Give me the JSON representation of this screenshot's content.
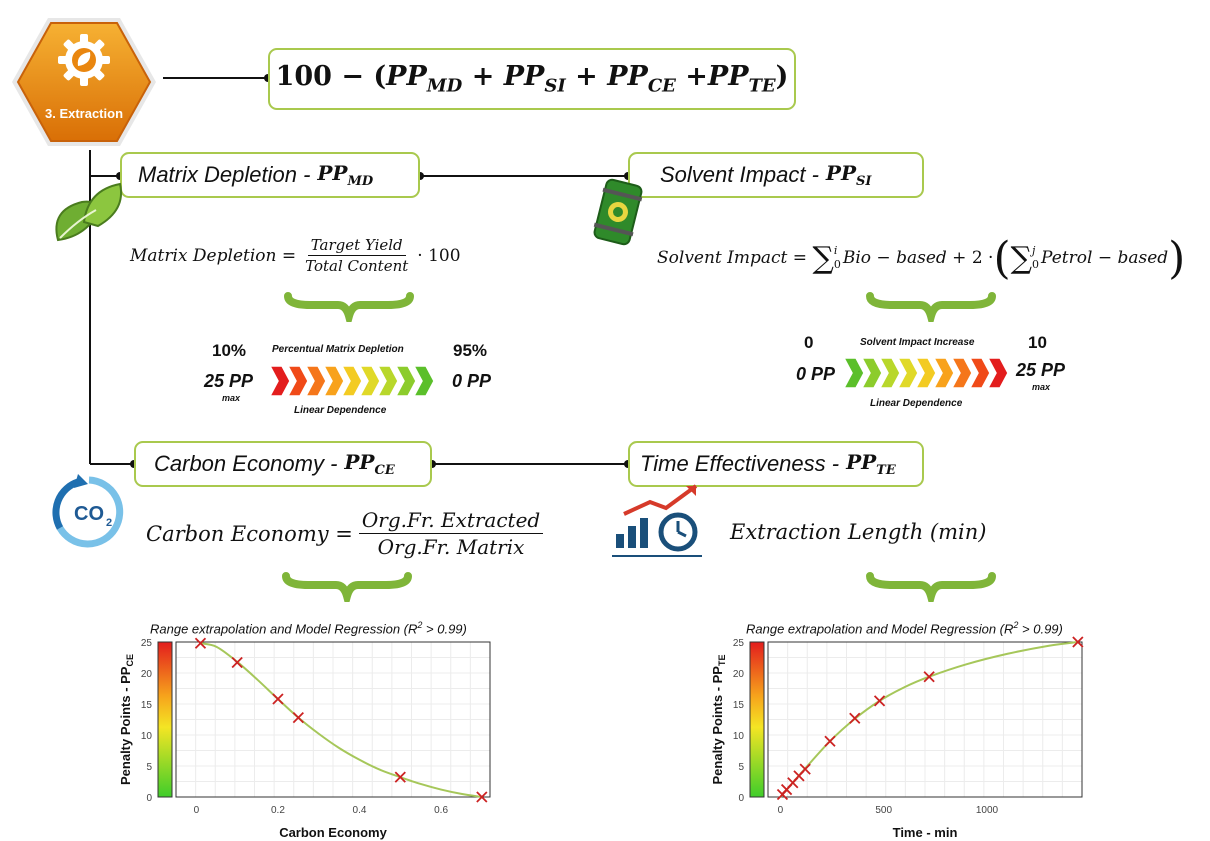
{
  "badge": {
    "label": "3. Extraction",
    "icon": "gear-leaf-icon"
  },
  "formula": {
    "lead": "100 − (",
    "terms": [
      "MD",
      "SI",
      "CE",
      "TE"
    ],
    "pp": "PP",
    "close": ")"
  },
  "matrix": {
    "title": "Matrix Depletion - ",
    "pp_sub": "MD",
    "eq_lhs": "Matrix Depletion",
    "num": "Target Yield",
    "den": "Total Content",
    "mult": "· 100",
    "scale": {
      "left_value": "10%",
      "right_value": "95%",
      "caption_top": "Percentual Matrix Depletion",
      "caption_bottom": "Linear Dependence",
      "left_pp": "25 PP",
      "left_max": "max",
      "right_pp": "0 PP"
    }
  },
  "solvent": {
    "title": "Solvent Impact - ",
    "pp_sub": "SI",
    "eq_lhs": "Solvent Impact",
    "sum1_upper": "i",
    "sum1_lower": "0",
    "bio": "Bio − based",
    "plus2": "+ 2 ·",
    "sum2_upper": "j",
    "sum2_lower": "0",
    "petrol": "Petrol − based",
    "scale": {
      "left_value": "0",
      "right_value": "10",
      "caption_top": "Solvent Impact Increase",
      "caption_bottom": "Linear Dependence",
      "left_pp": "0 PP",
      "right_pp": "25 PP",
      "right_max": "max"
    }
  },
  "carbon": {
    "title": "Carbon Economy - ",
    "pp_sub": "CE",
    "eq_lhs": "Carbon Economy",
    "num": "Org.Fr. Extracted",
    "den": "Org.Fr. Matrix"
  },
  "time": {
    "title": "Time Effectiveness - ",
    "pp_sub": "TE",
    "eq_text": "Extraction Length (min)"
  },
  "icons": {
    "leaf": "leaf-icon",
    "barrel": "green-barrel-icon",
    "co2": "co2-cycle-icon",
    "time": "time-chart-icon"
  },
  "colors": {
    "box_border": "#a9c94e",
    "brace": "#7fb539",
    "curve": "#a6c75a",
    "marker": "#cc2222"
  },
  "chart_data": [
    {
      "type": "scatter",
      "title_prefix": "Range extrapolation and Model Regression (R",
      "title_sup": "2",
      "title_suffix": " > 0.99)",
      "xlabel": "Carbon Economy",
      "ylabel": "Penalty Points - PP",
      "ylabel_sub": "CE",
      "xlim": [
        -0.05,
        0.72
      ],
      "ylim": [
        0,
        25
      ],
      "xticks": [
        "0",
        "0.2",
        "0.4",
        "0.6"
      ],
      "xtick_values": [
        0,
        0.2,
        0.4,
        0.6
      ],
      "yticks": [
        "0",
        "5",
        "10",
        "15",
        "20",
        "25"
      ],
      "ytick_values": [
        0,
        5,
        10,
        15,
        20,
        25
      ],
      "points": {
        "x": [
          0.01,
          0.1,
          0.2,
          0.25,
          0.5,
          0.7
        ],
        "y": [
          24.8,
          21.7,
          15.8,
          12.8,
          3.2,
          0
        ]
      },
      "fit_curve": {
        "x": [
          0.01,
          0.05,
          0.1,
          0.15,
          0.2,
          0.25,
          0.3,
          0.35,
          0.4,
          0.45,
          0.5,
          0.55,
          0.6,
          0.65,
          0.7
        ],
        "y": [
          24.8,
          24.2,
          21.8,
          18.9,
          15.8,
          12.8,
          10.2,
          7.9,
          6.0,
          4.4,
          3.2,
          2.1,
          1.2,
          0.5,
          0
        ]
      },
      "colorbar": "red-to-green",
      "grid": true
    },
    {
      "type": "scatter",
      "title_prefix": "Range extrapolation and Model Regression (R",
      "title_sup": "2",
      "title_suffix": " > 0.99)",
      "xlabel": "Time - min",
      "ylabel": "Penalty Points - PP",
      "ylabel_sub": "TE",
      "xlim": [
        -60,
        1460
      ],
      "ylim": [
        0,
        25
      ],
      "xticks": [
        "0",
        "500",
        "1000"
      ],
      "xtick_values": [
        0,
        500,
        1000
      ],
      "yticks": [
        "0",
        "5",
        "10",
        "15",
        "20",
        "25"
      ],
      "ytick_values": [
        0,
        5,
        10,
        15,
        20,
        25
      ],
      "points": {
        "x": [
          10,
          30,
          60,
          90,
          120,
          240,
          360,
          480,
          720,
          1440
        ],
        "y": [
          0.4,
          1.2,
          2.3,
          3.4,
          4.5,
          9.0,
          12.7,
          15.5,
          19.4,
          25
        ]
      },
      "fit_curve": {
        "x": [
          0,
          60,
          120,
          240,
          360,
          480,
          600,
          720,
          900,
          1100,
          1300,
          1440
        ],
        "y": [
          0,
          2.3,
          4.6,
          9.0,
          12.6,
          15.5,
          17.7,
          19.4,
          21.4,
          23.1,
          24.4,
          25
        ]
      },
      "colorbar": "red-to-green",
      "grid": true
    }
  ]
}
